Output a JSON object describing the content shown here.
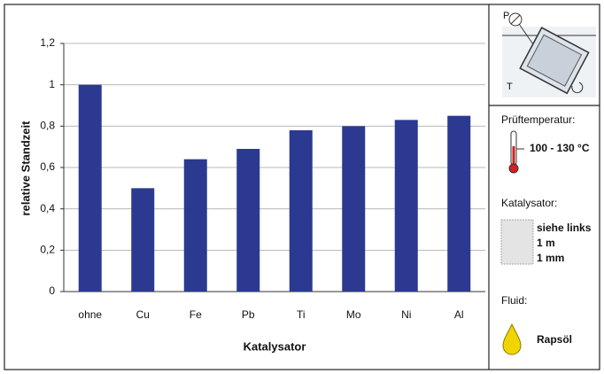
{
  "chart_data": {
    "type": "bar",
    "xlabel": "Katalysator",
    "ylabel": "relative Standzeit",
    "categories": [
      "ohne",
      "Cu",
      "Fe",
      "Pb",
      "Ti",
      "Mo",
      "Ni",
      "Al"
    ],
    "values": [
      1.0,
      0.5,
      0.64,
      0.69,
      0.78,
      0.8,
      0.83,
      0.85
    ],
    "color": "#2b3990",
    "ylim": [
      0,
      1.2
    ],
    "yticks": [
      0,
      {
        "value": 0.2,
        "label": "0,2"
      },
      {
        "value": 0.4,
        "label": "0,4"
      },
      {
        "value": 0.6,
        "label": "0,6"
      },
      {
        "value": 0.8,
        "label": "0,8"
      },
      1,
      {
        "value": 1.2,
        "label": "1,2"
      }
    ],
    "grid": true
  },
  "side_panel": {
    "diagram": {
      "p_label": "P",
      "t_label": "T"
    },
    "temperature": {
      "title": "Prüftemperatur:",
      "value": "100 - 130 °C"
    },
    "catalyst": {
      "title": "Katalysator:",
      "lines": [
        "siehe links",
        "1 m",
        "1 mm"
      ]
    },
    "fluid": {
      "title": "Fluid:",
      "value": "Rapsöl"
    }
  }
}
